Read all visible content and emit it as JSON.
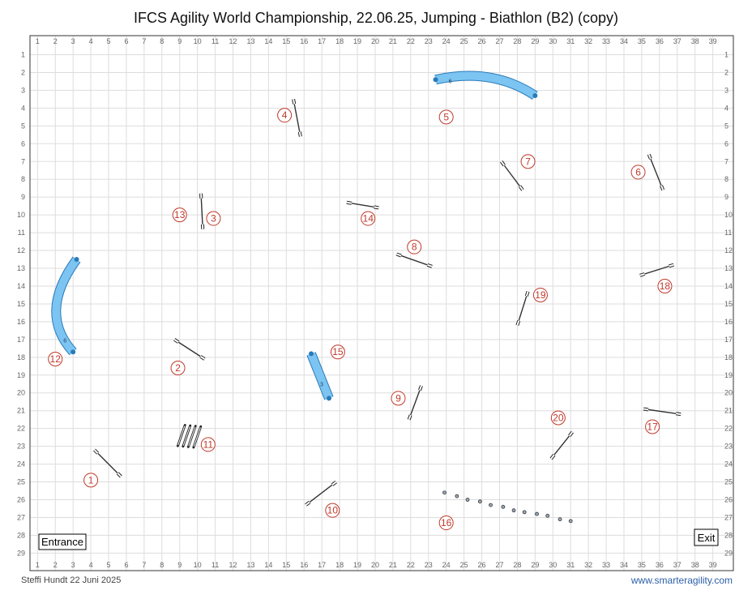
{
  "title": "IFCS Agility World Championship, 22.06.25, Jumping - Biathlon (B2) (copy)",
  "footer": {
    "author_date": "Steffi Hundt 22 Juni 2025",
    "website": "www.smarteragility.com"
  },
  "grid": {
    "cols": 39,
    "rows": 29
  },
  "labels": {
    "entrance": "Entrance",
    "exit": "Exit"
  },
  "colors": {
    "tunnel_fill": "#7cc4f2",
    "tunnel_stroke": "#2a7ab8",
    "number": "#c0392b",
    "grid": "#dddddd"
  },
  "obstacles": {
    "jumps": [
      {
        "number": "1",
        "from": [
          4.2,
          23.2
        ],
        "to": [
          5.7,
          24.7
        ],
        "label_at": [
          4,
          24.9
        ]
      },
      {
        "number": "2",
        "from": [
          8.7,
          17.0
        ],
        "to": [
          10.4,
          18.1
        ],
        "label_at": [
          8.9,
          18.6
        ]
      },
      {
        "number": "3",
        "from": [
          10.2,
          8.8
        ],
        "to": [
          10.3,
          10.8
        ],
        "label_at": [
          10.9,
          10.2
        ]
      },
      {
        "number": "4",
        "from": [
          15.4,
          3.5
        ],
        "to": [
          15.8,
          5.6
        ],
        "label_at": [
          14.9,
          4.4
        ]
      },
      {
        "number": "6",
        "from": [
          35.4,
          6.6
        ],
        "to": [
          36.2,
          8.6
        ],
        "label_at": [
          34.8,
          7.6
        ]
      },
      {
        "number": "7",
        "from": [
          27.1,
          7.0
        ],
        "to": [
          28.3,
          8.6
        ],
        "label_at": [
          28.6,
          7.0
        ]
      },
      {
        "number": "8",
        "from": [
          21.2,
          12.2
        ],
        "to": [
          23.2,
          12.9
        ],
        "label_at": [
          22.2,
          11.8
        ]
      },
      {
        "number": "9",
        "from": [
          21.9,
          21.5
        ],
        "to": [
          22.6,
          19.6
        ],
        "label_at": [
          21.3,
          20.3
        ]
      },
      {
        "number": "10",
        "from": [
          16.1,
          26.3
        ],
        "to": [
          17.8,
          25.0
        ],
        "label_at": [
          17.6,
          26.6
        ]
      },
      {
        "number": "13",
        "from": [
          10.2,
          8.8
        ],
        "to": [
          10.3,
          10.8
        ],
        "label_at": [
          9.0,
          10.0
        ]
      },
      {
        "number": "14",
        "from": [
          18.4,
          9.3
        ],
        "to": [
          20.2,
          9.6
        ],
        "label_at": [
          19.6,
          10.2
        ]
      },
      {
        "number": "17",
        "from": [
          35.1,
          20.9
        ],
        "to": [
          37.2,
          21.2
        ],
        "label_at": [
          35.6,
          21.9
        ]
      },
      {
        "number": "18",
        "from": [
          34.9,
          13.4
        ],
        "to": [
          36.8,
          12.8
        ],
        "label_at": [
          36.3,
          14.0
        ]
      },
      {
        "number": "19",
        "from": [
          28.0,
          16.2
        ],
        "to": [
          28.6,
          14.3
        ],
        "label_at": [
          29.3,
          14.5
        ]
      },
      {
        "number": "20",
        "from": [
          29.9,
          23.7
        ],
        "to": [
          31.1,
          22.2
        ],
        "label_at": [
          30.3,
          21.4
        ]
      }
    ],
    "tunnels": [
      {
        "number": "5",
        "tunnel_label": "6",
        "path": [
          [
            23.4,
            2.4
          ],
          [
            26.6,
            1.7
          ],
          [
            29.0,
            3.3
          ]
        ],
        "label_at": [
          24.0,
          4.5
        ]
      },
      {
        "number": "12",
        "tunnel_label": "6",
        "path": [
          [
            3.2,
            12.5
          ],
          [
            1.0,
            15.5
          ],
          [
            3.0,
            17.7
          ]
        ],
        "label_at": [
          2.0,
          18.1
        ]
      },
      {
        "number": "15",
        "tunnel_label": "3",
        "path": [
          [
            16.4,
            17.8
          ],
          [
            17.4,
            20.3
          ]
        ],
        "label_at": [
          17.9,
          17.7
        ]
      }
    ],
    "tire_number": "16",
    "tire_label_at": [
      24.0,
      27.3
    ],
    "weave_points": [
      [
        23.9,
        25.6
      ],
      [
        24.6,
        25.8
      ],
      [
        25.2,
        26.0
      ],
      [
        25.9,
        26.1
      ],
      [
        26.5,
        26.3
      ],
      [
        27.2,
        26.4
      ],
      [
        27.8,
        26.6
      ],
      [
        28.4,
        26.7
      ],
      [
        29.1,
        26.8
      ],
      [
        29.7,
        26.9
      ],
      [
        30.4,
        27.1
      ],
      [
        31.0,
        27.2
      ]
    ],
    "wall": {
      "number": "11",
      "label_at": [
        10.6,
        22.9
      ]
    }
  }
}
